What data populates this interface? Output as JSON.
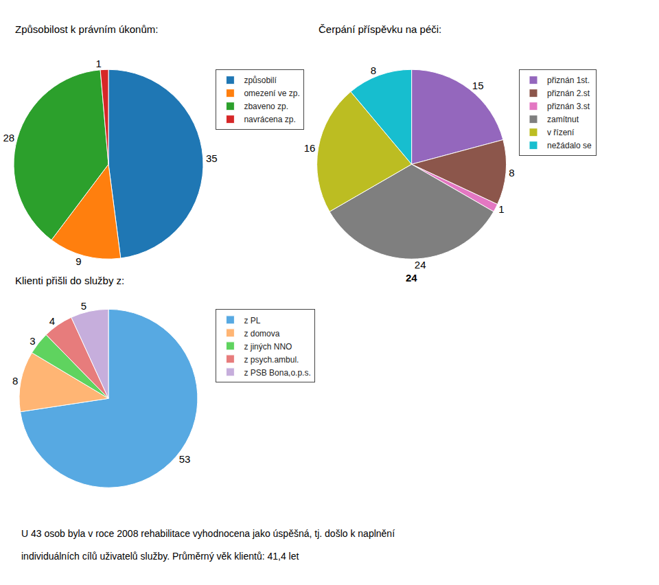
{
  "chart_data": [
    {
      "type": "pie",
      "title": "Způsobilost k právním úkonům:",
      "categories": [
        "způsobilí",
        "omezení ve zp.",
        "zbaveno zp.",
        "navrácena zp."
      ],
      "values": [
        35,
        9,
        28,
        1
      ],
      "data_labels": true,
      "legend": "right"
    },
    {
      "type": "pie",
      "title": "Čerpání příspěvku na péči:",
      "categories": [
        "přiznán 1st.",
        "přiznán 2.st",
        "přiznán 3.st",
        "zamítnut",
        "v řízení",
        "nežádalo se"
      ],
      "values": [
        15,
        8,
        1,
        24,
        16,
        8
      ],
      "data_labels": true,
      "legend": "right",
      "annotations": [
        "24"
      ]
    },
    {
      "type": "pie",
      "title": "Klienti přišli do služby z:",
      "categories": [
        "z PL",
        "z domova",
        "z jiných NNO",
        "z psych.ambul.",
        "z PSB Bona,o.p.s."
      ],
      "values": [
        53,
        8,
        3,
        4,
        5
      ],
      "data_labels": true,
      "legend": "right"
    }
  ],
  "annotations": [
    "U 43 osob byla v roce 2008 rehabilitace vyhodnocena jako úspěšná, tj. došlo k naplnění",
    "individuálních cílů uživatelů služby. Průměrný věk klientů: 41,4 let"
  ]
}
